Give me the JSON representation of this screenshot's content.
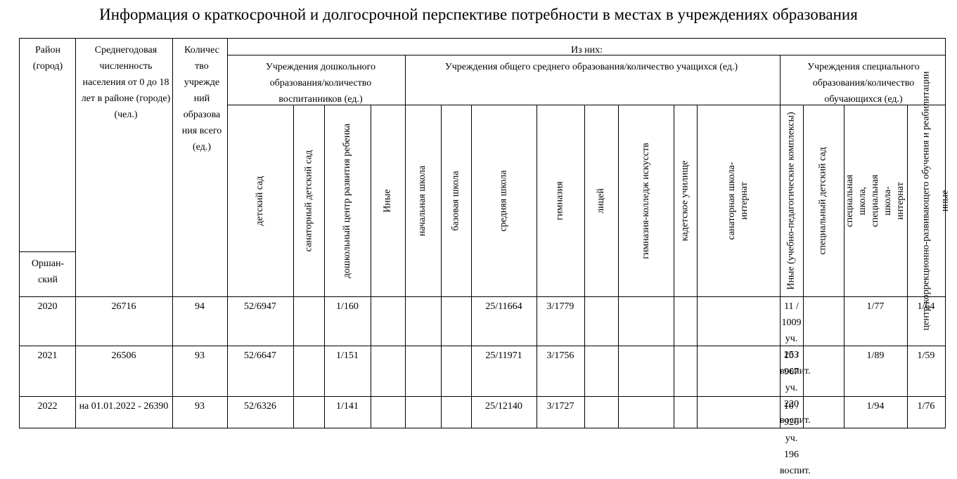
{
  "title": "Информация о краткосрочной и долгосрочной перспективе потребности в местах в учреждениях образования",
  "headers": {
    "district": "Район (город)",
    "district_name": "Оршан-ский",
    "population": "Среднегодовая численность населения от 0 до 18 лет в районе (городе) (чел.)",
    "count": "Количес тво учрежде ний образова ния всего (ед.)",
    "of_them": "Из них:",
    "groups": {
      "preschool": "Учреждения дошкольного образования/количество воспитанников (ед.)",
      "general": "Учреждения общего среднего образования/количество учащихся (ед.)",
      "special": "Учреждения специального образования/количество обучающихся (ед.)"
    },
    "columns": [
      "детский сад",
      "санаторный детский сад",
      "дошкольный центр развития ребенка",
      "Иные",
      "начальная школа",
      "базовая школа",
      "средняя школа",
      "гимназия",
      "лицей",
      "гимназия-колледж искусств",
      "кадетское училище",
      "санаторная школа-интернат",
      "Иные (учебно-педагогические комплексы)",
      "специальный детский сад",
      "специальная школа, специальная школа-интернат",
      "центр коррекционно-развивающего обучения и реабилитации",
      "иные"
    ]
  },
  "rows": [
    {
      "year": "2020",
      "population": "26716",
      "count": "94",
      "values": [
        "52/6947",
        "",
        "1/160",
        "",
        "",
        "",
        "25/11664",
        "3/1779",
        "",
        "",
        "",
        "",
        "11 / 1009 уч. 253 воспит.",
        "",
        "1/77",
        "1/64",
        ""
      ]
    },
    {
      "year": "2021",
      "population": "26506",
      "count": "93",
      "values": [
        "52/6647",
        "",
        "1/151",
        "",
        "",
        "",
        "25/11971",
        "3/1756",
        "",
        "",
        "",
        "",
        "10 / 967 уч. 220 воспит.",
        "",
        "1/89",
        "1/59",
        ""
      ]
    },
    {
      "year": "2022",
      "population": "на 01.01.2022 - 26390",
      "count": "93",
      "values": [
        "52/6326",
        "",
        "1/141",
        "",
        "",
        "",
        "25/12140",
        "3/1727",
        "",
        "",
        "",
        "",
        "10 / 926 уч. 196 воспит.",
        "",
        "1/94",
        "1/76",
        ""
      ]
    }
  ]
}
